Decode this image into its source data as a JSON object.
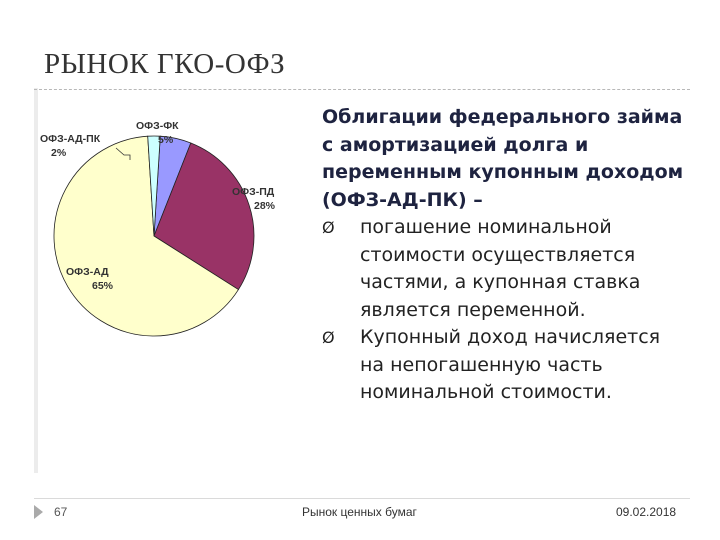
{
  "title": "РЫНОК ГКО-ОФЗ",
  "chart_data": {
    "type": "pie",
    "slices": [
      {
        "name": "ОФЗ-ФК",
        "value": 5,
        "label": "5%",
        "color": "#9999ff"
      },
      {
        "name": "ОФЗ-ПД",
        "value": 28,
        "label": "28%",
        "color": "#993366"
      },
      {
        "name": "ОФЗ-АД",
        "value": 65,
        "label": "65%",
        "color": "#ffffcc"
      },
      {
        "name": "ОФЗ-АД-ПК",
        "value": 2,
        "label": "2%",
        "color": "#ccffff"
      }
    ]
  },
  "content": {
    "lead": "Облигации федерального займа с амортизацией долга и переменным купонным доходом (ОФЗ-АД-ПК) –",
    "bullet_mark": "Ø",
    "bullets": [
      "погашение номинальной стоимости осуществляется частями, а купонная ставка является переменной.",
      "Купонный доход начисляется на непогашенную часть номинальной стоимости."
    ]
  },
  "footer": {
    "page_number": "67",
    "center_text": "Рынок ценных бумаг",
    "date": "09.02.2018"
  }
}
